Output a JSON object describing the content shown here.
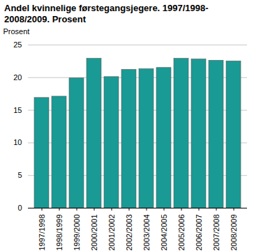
{
  "chart_data": {
    "type": "bar",
    "title": "Andel kvinnelige førstegangsjegere. 1997/1998-2008/2009. Prosent",
    "y_label": "Prosent",
    "categories": [
      "1997/1998",
      "1998/1999",
      "1999/2000",
      "2000/2001",
      "2001/2002",
      "2002/2003",
      "2003/2004",
      "2004/2005",
      "2005/2006",
      "2006/2007",
      "2007/2008",
      "2008/2009"
    ],
    "values": [
      16.9,
      17.1,
      19.9,
      22.9,
      20.1,
      21.2,
      21.3,
      21.5,
      22.9,
      22.8,
      22.6,
      22.5
    ],
    "color": "#1a9a94",
    "ylim": [
      0,
      25
    ],
    "yticks": [
      0,
      5,
      10,
      15,
      20,
      25
    ],
    "grid": true
  }
}
